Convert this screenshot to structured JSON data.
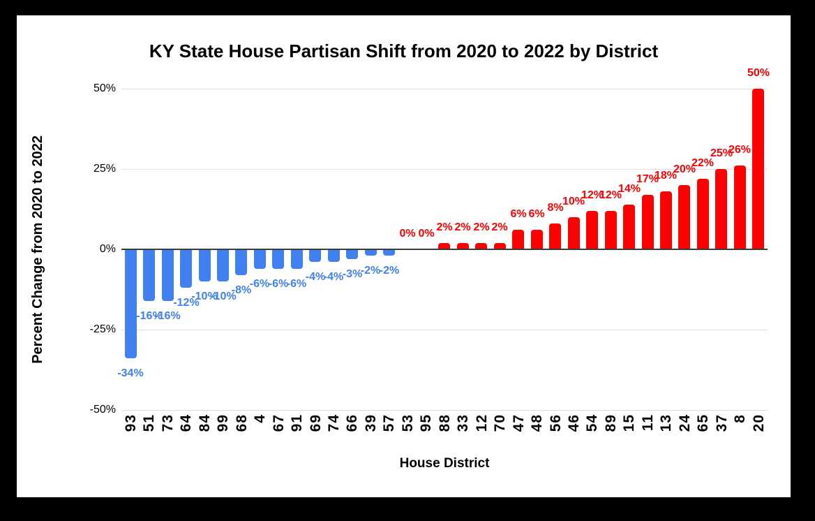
{
  "chart_data": {
    "type": "bar",
    "title": "KY State House Partisan Shift from 2020 to 2022 by District",
    "xlabel": "House District",
    "ylabel": "Percent Change from 2020 to 2022",
    "ylim": [
      -50,
      50
    ],
    "grid": true,
    "legend_position": "none",
    "ytick_values": [
      50,
      25,
      0,
      -25,
      -50
    ],
    "ytick_labels": [
      "50%",
      "25%",
      "0%",
      "-25%",
      "-50%"
    ],
    "categories": [
      "93",
      "51",
      "73",
      "64",
      "84",
      "99",
      "68",
      "4",
      "67",
      "91",
      "69",
      "74",
      "66",
      "39",
      "57",
      "53",
      "95",
      "88",
      "33",
      "12",
      "70",
      "47",
      "48",
      "56",
      "46",
      "54",
      "89",
      "15",
      "11",
      "13",
      "24",
      "65",
      "37",
      "8",
      "20"
    ],
    "values": [
      -34,
      -16,
      -16,
      -12,
      -10,
      -10,
      -8,
      -6,
      -6,
      -6,
      -4,
      -4,
      -3,
      -2,
      -2,
      0,
      0,
      2,
      2,
      2,
      2,
      6,
      6,
      8,
      10,
      12,
      12,
      14,
      17,
      18,
      20,
      22,
      25,
      26,
      50
    ],
    "data_labels": [
      "-34%",
      "-16%",
      "-16%",
      "-12%",
      "-10%",
      "-10%",
      "-8%",
      "-6%",
      "-6%",
      "-6%",
      "-4%",
      "-4%",
      "-3%",
      "-2%",
      "-2%",
      "0%",
      "0%",
      "2%",
      "2%",
      "2%",
      "2%",
      "6%",
      "6%",
      "8%",
      "10%",
      "12%",
      "12%",
      "14%",
      "17%",
      "18%",
      "20%",
      "22%",
      "25%",
      "26%",
      "50%"
    ],
    "colors": {
      "negative_bar": "#4080f0",
      "positive_bar": "#ff0000",
      "negative_label": "#4080f0",
      "positive_label": "#ff0000",
      "axis_line": "#3c3c3c",
      "gridline": "#e0e0e0",
      "text": "#000000",
      "frame": "#000000",
      "background": "#ffffff"
    }
  }
}
